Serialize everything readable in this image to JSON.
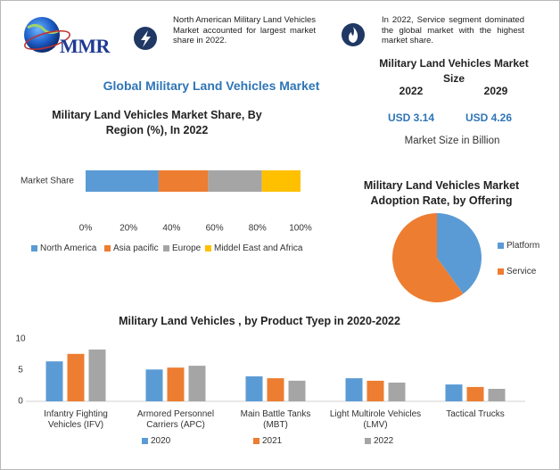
{
  "header": {
    "logo": "MMR",
    "title": "Global Military Land Vehicles Market",
    "facts": [
      "North American Military Land Vehicles Market accounted for largest market share in 2022.",
      "In 2022, Service segment dominated the global market with the highest market share."
    ],
    "market_size": {
      "title": "Military Land Vehicles Market Size",
      "years": [
        "2022",
        "2029"
      ],
      "values": [
        "USD 3.14",
        "USD 4.26"
      ],
      "unit": "Market Size in Billion"
    }
  },
  "chart_data": [
    {
      "type": "bar",
      "orientation": "horizontal",
      "stacked": true,
      "title": "Military Land Vehicles Market Share, By Region (%), In 2022",
      "categories": [
        "Market Share"
      ],
      "series": [
        {
          "name": "North America",
          "color": "#5b9bd5",
          "values": [
            34
          ]
        },
        {
          "name": "Asia pacific",
          "color": "#ed7d31",
          "values": [
            23
          ]
        },
        {
          "name": "Europe",
          "color": "#a5a5a5",
          "values": [
            25
          ]
        },
        {
          "name": "Middel East and Africa",
          "color": "#ffc000",
          "values": [
            18
          ]
        }
      ],
      "xlim": [
        0,
        100
      ],
      "xticks": [
        {
          "value": 0,
          "label": "0%"
        },
        {
          "value": 20,
          "label": "20%"
        },
        {
          "value": 40,
          "label": "40%"
        },
        {
          "value": 60,
          "label": "60%"
        },
        {
          "value": 80,
          "label": "80%"
        },
        {
          "value": 100,
          "label": "100%"
        }
      ],
      "legend": "bottom"
    },
    {
      "type": "pie",
      "title": "Military Land Vehicles Market Adoption Rate, by Offering",
      "categories": [
        "Platform",
        "Service"
      ],
      "values": [
        40,
        60
      ],
      "colors": [
        "#5b9bd5",
        "#ed7d31"
      ],
      "legend": "right"
    },
    {
      "type": "bar",
      "orientation": "vertical",
      "title": "Military Land Vehicles , by Product Tyep in 2020-2022",
      "categories": [
        "Infantry Fighting Vehicles (IFV)",
        "Armored Personnel Carriers (APC)",
        "Main Battle Tanks (MBT)",
        "Light Multirole Vehicles (LMV)",
        "Tactical Trucks"
      ],
      "series": [
        {
          "name": "2020",
          "color": "#5b9bd5",
          "values": [
            6.4,
            5.1,
            4.0,
            3.7,
            2.7
          ]
        },
        {
          "name": "2021",
          "color": "#ed7d31",
          "values": [
            7.6,
            5.4,
            3.7,
            3.3,
            2.3
          ]
        },
        {
          "name": "2022",
          "color": "#a5a5a5",
          "values": [
            8.3,
            5.7,
            3.3,
            3.0,
            2.0
          ]
        }
      ],
      "ylim": [
        0,
        10
      ],
      "yticks": [
        0,
        5,
        10
      ],
      "legend": "bottom"
    }
  ]
}
